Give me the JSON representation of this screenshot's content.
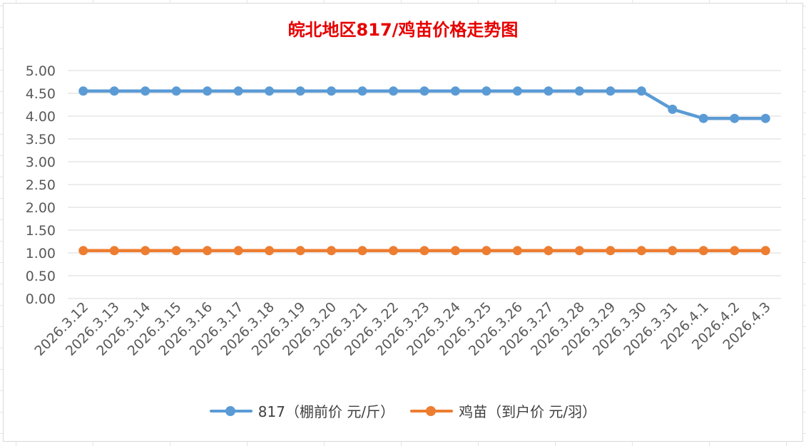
{
  "chart_data": {
    "type": "line",
    "title": "皖北地区817/鸡苗价格走势图",
    "categories": [
      "2026.3.12",
      "2026.3.13",
      "2026.3.14",
      "2026.3.15",
      "2026.3.16",
      "2026.3.17",
      "2026.3.18",
      "2026.3.19",
      "2026.3.20",
      "2026.3.21",
      "2026.3.22",
      "2026.3.23",
      "2026.3.24",
      "2026.3.25",
      "2026.3.26",
      "2026.3.27",
      "2026.3.28",
      "2026.3.29",
      "2026.3.30",
      "2026.3.31",
      "2026.4.1",
      "2026.4.2",
      "2026.4.3"
    ],
    "series": [
      {
        "name": "817（棚前价 元/斤）",
        "color": "#5b9bd5",
        "values": [
          4.55,
          4.55,
          4.55,
          4.55,
          4.55,
          4.55,
          4.55,
          4.55,
          4.55,
          4.55,
          4.55,
          4.55,
          4.55,
          4.55,
          4.55,
          4.55,
          4.55,
          4.55,
          4.55,
          4.15,
          3.95,
          3.95,
          3.95
        ]
      },
      {
        "name": "鸡苗（到户价 元/羽）",
        "color": "#ed7d31",
        "values": [
          1.05,
          1.05,
          1.05,
          1.05,
          1.05,
          1.05,
          1.05,
          1.05,
          1.05,
          1.05,
          1.05,
          1.05,
          1.05,
          1.05,
          1.05,
          1.05,
          1.05,
          1.05,
          1.05,
          1.05,
          1.05,
          1.05,
          1.05
        ]
      }
    ],
    "ylim": [
      0,
      5
    ],
    "yticks": [
      "0.00",
      "0.50",
      "1.00",
      "1.50",
      "2.00",
      "2.50",
      "3.00",
      "3.50",
      "4.00",
      "4.50",
      "5.00"
    ],
    "grid": true,
    "legend_position": "bottom"
  }
}
